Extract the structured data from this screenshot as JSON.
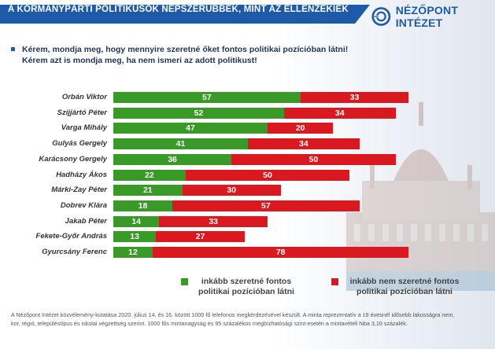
{
  "header": {
    "title": "A KORMÁNYPÁRTI POLITIKUSOK NÉPSZERŰBBEK, MINT AZ ELLENZÉKIEK"
  },
  "logo": {
    "text": "NÉZŐPONT INTÉZET"
  },
  "question": {
    "line1": "Kérem, mondja meg, hogy mennyire szeretné őket fontos politikai pozícióban látni!",
    "line2": "Kérem azt is mondja meg, ha nem ismeri az adott politikust!"
  },
  "chart_data": {
    "type": "bar",
    "orientation": "horizontal",
    "stacked": true,
    "categories": [
      "Orbán Viktor",
      "Szijjártó Péter",
      "Varga Mihály",
      "Gulyás Gergely",
      "Karácsony Gergely",
      "Hadházy Ákos",
      "Márki-Zay Péter",
      "Dobrev Klára",
      "Jakab Péter",
      "Fekete-Győr András",
      "Gyurcsány Ferenc"
    ],
    "series": [
      {
        "name": "inkább szeretné fontos politikai pozícióban látni",
        "color": "#3a9a27",
        "values": [
          57,
          52,
          47,
          41,
          36,
          22,
          21,
          18,
          14,
          13,
          12
        ]
      },
      {
        "name": "inkább nem szeretné fontos politikai pozícióban látni",
        "color": "#d9181f",
        "values": [
          33,
          34,
          20,
          34,
          50,
          50,
          30,
          57,
          33,
          27,
          78
        ]
      }
    ],
    "xlim": [
      0,
      90
    ],
    "data_labels": true,
    "grid": false,
    "legend_position": "bottom"
  },
  "legend": {
    "green_line1": "inkább szeretné fontos",
    "green_line2": "politikai pozícióban látni",
    "red_line1": "inkább nem szeretné fontos",
    "red_line2": "politikai pozícióban látni"
  },
  "footnote": {
    "line1": "A Nézőpont Intézet közvélemény-kutatása 2020. július 14. és 16. között 1000 fő telefonos megkérdezésével készült. A minta reprezentatív a 18 évesnél idősebb lakosságra nem,",
    "line2": "kor, régió, településtípus és iskolai végzettség szerint. 1000 fős mintanagyság és 95 százalékos megbízhatósági szint esetén a mintavételi hiba 3,16 százalék."
  }
}
